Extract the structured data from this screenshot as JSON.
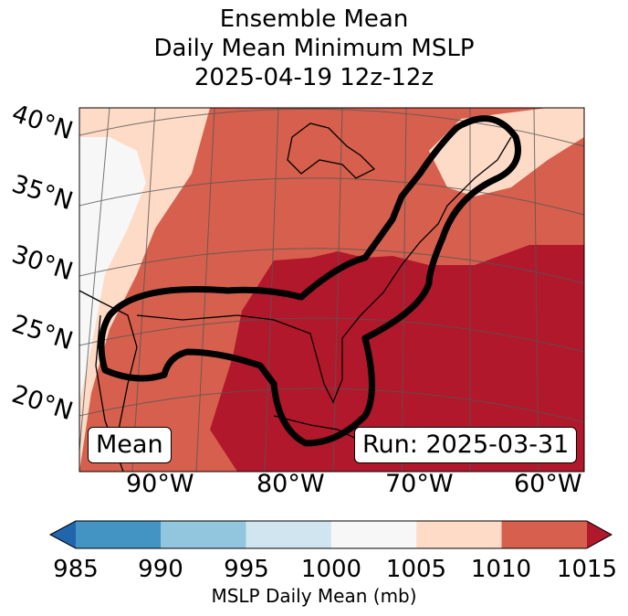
{
  "title": {
    "line1": "Ensemble Mean",
    "line2": "Daily Mean Minimum MSLP",
    "line3": "2025-04-19 12z-12z"
  },
  "map": {
    "lat_labels": [
      "40°N",
      "35°N",
      "30°N",
      "25°N",
      "20°N"
    ],
    "lon_labels": [
      "90°W",
      "80°W",
      "70°W",
      "60°W"
    ],
    "left_box": "Mean",
    "right_box": "Run: 2025-03-31"
  },
  "colorbar": {
    "ticks": [
      "985",
      "990",
      "995",
      "1000",
      "1005",
      "1010",
      "1015"
    ],
    "label": "MSLP Daily Mean (mb)",
    "colors": [
      "#2166ac",
      "#4393c3",
      "#92c5de",
      "#d1e5f0",
      "#f7f7f7",
      "#fddbc7",
      "#d6604d",
      "#b2182b"
    ]
  }
}
